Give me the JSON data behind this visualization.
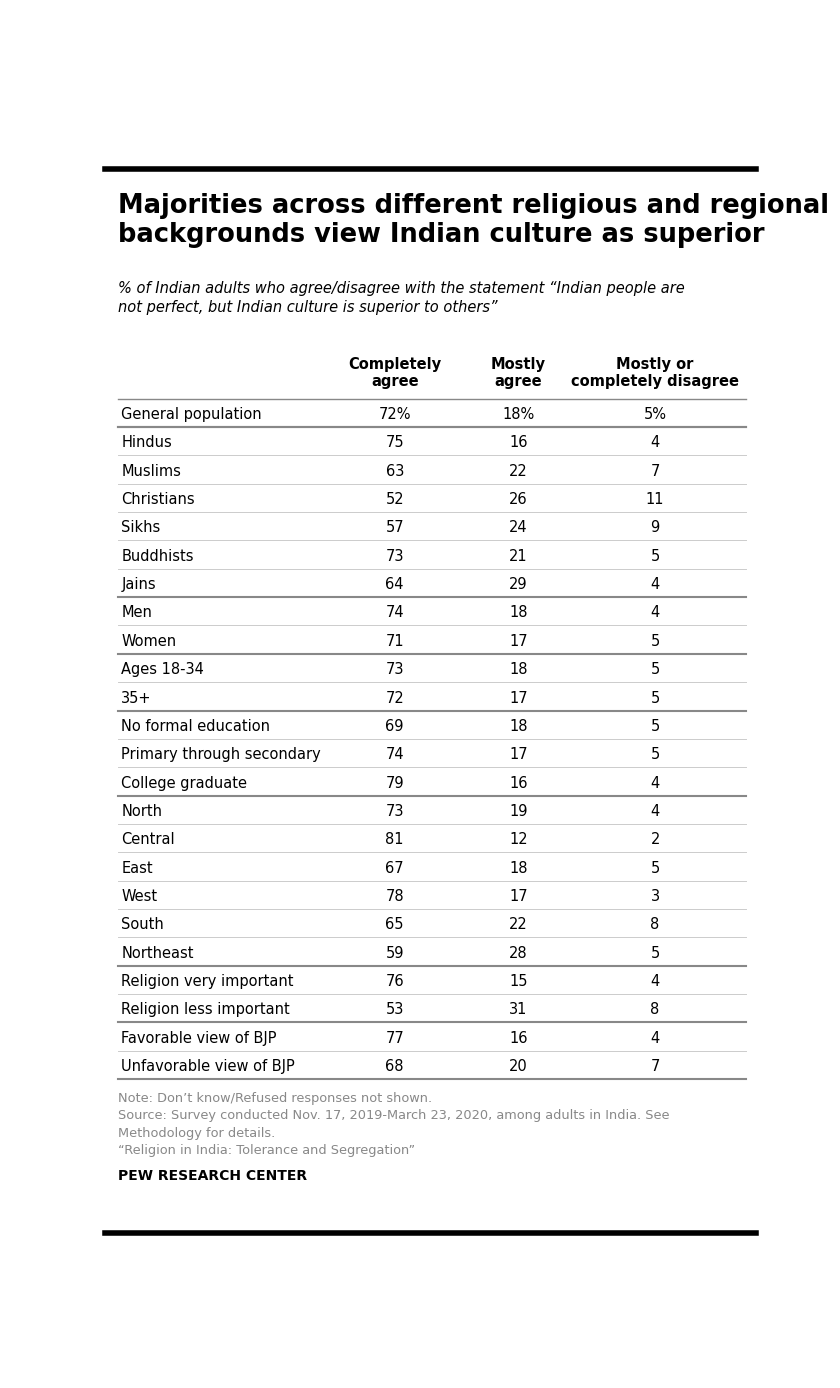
{
  "title": "Majorities across different religious and regional\nbackgrounds view Indian culture as superior",
  "subtitle": "% of Indian adults who agree/disagree with the statement “Indian people are\nnot perfect, but Indian culture is superior to others”",
  "col_headers": [
    "Completely\nagree",
    "Mostly\nagree",
    "Mostly or\ncompletely disagree"
  ],
  "rows": [
    {
      "label": "General population",
      "vals": [
        "72%",
        "18%",
        "5%"
      ],
      "group": "general"
    },
    {
      "label": "Hindus",
      "vals": [
        "75",
        "16",
        "4"
      ],
      "group": "religion"
    },
    {
      "label": "Muslims",
      "vals": [
        "63",
        "22",
        "7"
      ],
      "group": "religion"
    },
    {
      "label": "Christians",
      "vals": [
        "52",
        "26",
        "11"
      ],
      "group": "religion"
    },
    {
      "label": "Sikhs",
      "vals": [
        "57",
        "24",
        "9"
      ],
      "group": "religion"
    },
    {
      "label": "Buddhists",
      "vals": [
        "73",
        "21",
        "5"
      ],
      "group": "religion"
    },
    {
      "label": "Jains",
      "vals": [
        "64",
        "29",
        "4"
      ],
      "group": "religion"
    },
    {
      "label": "Men",
      "vals": [
        "74",
        "18",
        "4"
      ],
      "group": "gender"
    },
    {
      "label": "Women",
      "vals": [
        "71",
        "17",
        "5"
      ],
      "group": "gender"
    },
    {
      "label": "Ages 18-34",
      "vals": [
        "73",
        "18",
        "5"
      ],
      "group": "age"
    },
    {
      "label": "35+",
      "vals": [
        "72",
        "17",
        "5"
      ],
      "group": "age"
    },
    {
      "label": "No formal education",
      "vals": [
        "69",
        "18",
        "5"
      ],
      "group": "education"
    },
    {
      "label": "Primary through secondary",
      "vals": [
        "74",
        "17",
        "5"
      ],
      "group": "education"
    },
    {
      "label": "College graduate",
      "vals": [
        "79",
        "16",
        "4"
      ],
      "group": "education"
    },
    {
      "label": "North",
      "vals": [
        "73",
        "19",
        "4"
      ],
      "group": "region"
    },
    {
      "label": "Central",
      "vals": [
        "81",
        "12",
        "2"
      ],
      "group": "region"
    },
    {
      "label": "East",
      "vals": [
        "67",
        "18",
        "5"
      ],
      "group": "region"
    },
    {
      "label": "West",
      "vals": [
        "78",
        "17",
        "3"
      ],
      "group": "region"
    },
    {
      "label": "South",
      "vals": [
        "65",
        "22",
        "8"
      ],
      "group": "region"
    },
    {
      "label": "Northeast",
      "vals": [
        "59",
        "28",
        "5"
      ],
      "group": "region"
    },
    {
      "label": "Religion very important",
      "vals": [
        "76",
        "15",
        "4"
      ],
      "group": "religion_imp"
    },
    {
      "label": "Religion less important",
      "vals": [
        "53",
        "31",
        "8"
      ],
      "group": "religion_imp"
    },
    {
      "label": "Favorable view of BJP",
      "vals": [
        "77",
        "16",
        "4"
      ],
      "group": "bjp"
    },
    {
      "label": "Unfavorable view of BJP",
      "vals": [
        "68",
        "20",
        "7"
      ],
      "group": "bjp"
    }
  ],
  "note_text": "Note: Don’t know/Refused responses not shown.\nSource: Survey conducted Nov. 17, 2019-March 23, 2020, among adults in India. See\nMethodology for details.\n“Religion in India: Tolerance and Segregation”",
  "pew_text": "PEW RESEARCH CENTER",
  "bg_color": "#ffffff",
  "text_color": "#000000",
  "header_color": "#000000",
  "separator_thin": "#cccccc",
  "separator_thick": "#888888",
  "note_color": "#888888"
}
